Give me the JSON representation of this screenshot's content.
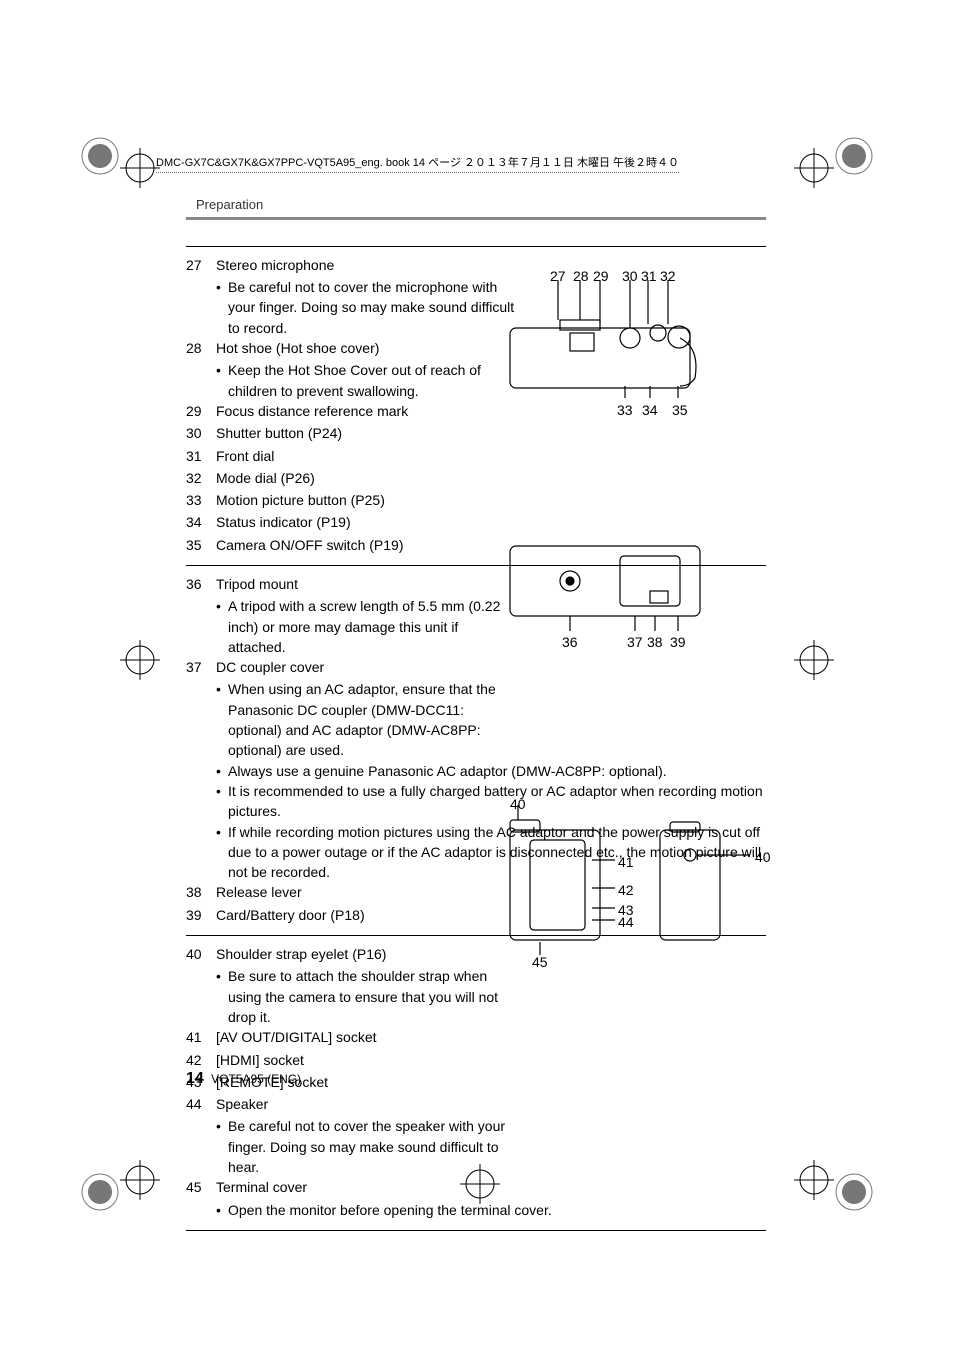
{
  "header": {
    "file_stamp": "DMC-GX7C&GX7K&GX7PPC-VQT5A95_eng. book  14 ページ  ２０１３年７月１１日  木曜日  午後２時４０",
    "section_title": "Preparation"
  },
  "block1": {
    "items": [
      {
        "num": "27",
        "label": "Stereo microphone",
        "bullets": [
          "Be careful not to cover the microphone with your finger. Doing so may make sound difficult to record."
        ]
      },
      {
        "num": "28",
        "label": "Hot shoe (Hot shoe cover)",
        "bullets": [
          "Keep the Hot Shoe Cover out of reach of children to prevent swallowing."
        ]
      },
      {
        "num": "29",
        "label": "Focus distance reference mark",
        "bullets": []
      },
      {
        "num": "30",
        "label": "Shutter button (P24)",
        "bullets": []
      },
      {
        "num": "31",
        "label": "Front dial",
        "bullets": []
      },
      {
        "num": "32",
        "label": "Mode dial (P26)",
        "bullets": []
      },
      {
        "num": "33",
        "label": "Motion picture button (P25)",
        "bullets": []
      },
      {
        "num": "34",
        "label": "Status indicator (P19)",
        "bullets": []
      },
      {
        "num": "35",
        "label": "Camera ON/OFF switch (P19)",
        "bullets": []
      }
    ],
    "diagram_labels_top": [
      "27",
      "28",
      "29",
      "30",
      "31",
      "32"
    ],
    "diagram_labels_bottom": [
      "33",
      "34",
      "35"
    ]
  },
  "block2": {
    "items": [
      {
        "num": "36",
        "label": "Tripod mount",
        "bullets": [
          "A tripod with a screw length of 5.5 mm (0.22 inch) or more may damage this unit if attached."
        ],
        "narrow": true
      },
      {
        "num": "37",
        "label": "DC coupler cover",
        "bullets": [
          "When using an AC adaptor, ensure that the Panasonic DC coupler (DMW-DCC11: optional) and AC adaptor (DMW-AC8PP: optional) are used.",
          "Always use a genuine Panasonic AC adaptor (DMW-AC8PP: optional).",
          "It is recommended to use a fully charged battery or AC adaptor when recording motion pictures.",
          "If while recording motion pictures using the AC adaptor and the power supply is cut off due to a power outage or if the AC adaptor is disconnected etc., the motion picture will not be recorded."
        ],
        "narrow_first": 1
      },
      {
        "num": "38",
        "label": "Release lever",
        "bullets": []
      },
      {
        "num": "39",
        "label": "Card/Battery door (P18)",
        "bullets": []
      }
    ],
    "diagram_labels": [
      "36",
      "37",
      "38",
      "39"
    ]
  },
  "block3": {
    "items": [
      {
        "num": "40",
        "label": "Shoulder strap eyelet (P16)",
        "bullets": [
          "Be sure to attach the shoulder strap when using the camera to ensure that you will not drop it."
        ],
        "narrow": true
      },
      {
        "num": "41",
        "label": "[AV OUT/DIGITAL] socket",
        "bullets": []
      },
      {
        "num": "42",
        "label": "[HDMI] socket",
        "bullets": []
      },
      {
        "num": "43",
        "label": "[REMOTE] socket",
        "bullets": []
      },
      {
        "num": "44",
        "label": "Speaker",
        "bullets": [
          "Be careful not to cover the speaker with your finger. Doing so may make sound difficult to hear."
        ],
        "narrow": true
      },
      {
        "num": "45",
        "label": "Terminal cover",
        "bullets": [
          "Open the monitor before opening the terminal cover."
        ]
      }
    ],
    "diagram_left_label": "40",
    "diagram_right_labels": [
      "41",
      "42",
      "43",
      "44"
    ],
    "diagram_bottom_label": "45",
    "diagram_right_side_label": "40"
  },
  "footer": {
    "page_number": "14",
    "doc_code": "VQT5A95 (ENG)"
  },
  "colors": {
    "rule": "#888888",
    "text": "#000000",
    "diagram_stroke": "#000000",
    "diagram_fill": "#e0e0e0"
  }
}
